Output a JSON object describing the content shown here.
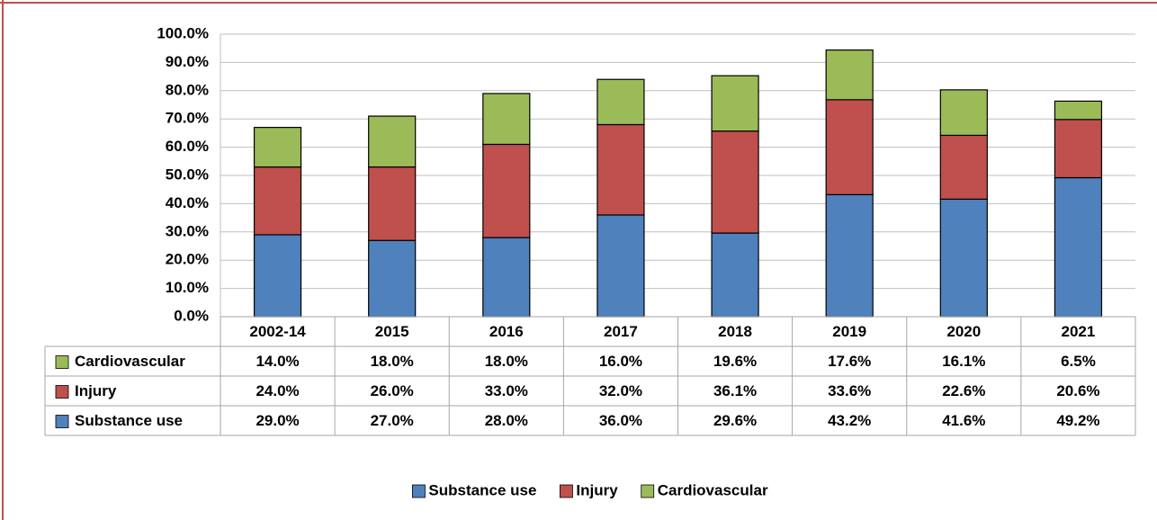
{
  "chart_data": {
    "type": "stacked_bar",
    "categories": [
      "2002-14",
      "2015",
      "2016",
      "2017",
      "2018",
      "2019",
      "2020",
      "2021"
    ],
    "series": [
      {
        "name": "Substance use",
        "color": "#4f81bd",
        "values": [
          29.0,
          27.0,
          28.0,
          36.0,
          29.6,
          43.2,
          41.6,
          49.2
        ],
        "value_labels": [
          "29.0%",
          "27.0%",
          "28.0%",
          "36.0%",
          "29.6%",
          "43.2%",
          "41.6%",
          "49.2%"
        ]
      },
      {
        "name": "Injury",
        "color": "#c0504d",
        "values": [
          24.0,
          26.0,
          33.0,
          32.0,
          36.1,
          33.6,
          22.6,
          20.6
        ],
        "value_labels": [
          "24.0%",
          "26.0%",
          "33.0%",
          "32.0%",
          "36.1%",
          "33.6%",
          "22.6%",
          "20.6%"
        ]
      },
      {
        "name": "Cardiovascular",
        "color": "#9bbb59",
        "values": [
          14.0,
          18.0,
          18.0,
          16.0,
          19.6,
          17.6,
          16.1,
          6.5
        ],
        "value_labels": [
          "14.0%",
          "18.0%",
          "18.0%",
          "16.0%",
          "19.6%",
          "17.6%",
          "16.1%",
          "6.5%"
        ]
      }
    ],
    "ylim": [
      0,
      100
    ],
    "yticks": [
      {
        "value": 0,
        "label": "0.0%"
      },
      {
        "value": 10,
        "label": "10.0%"
      },
      {
        "value": 20,
        "label": "20.0%"
      },
      {
        "value": 30,
        "label": "30.0%"
      },
      {
        "value": 40,
        "label": "40.0%"
      },
      {
        "value": 50,
        "label": "50.0%"
      },
      {
        "value": 60,
        "label": "60.0%"
      },
      {
        "value": 70,
        "label": "70.0%"
      },
      {
        "value": 80,
        "label": "80.0%"
      },
      {
        "value": 90,
        "label": "90.0%"
      },
      {
        "value": 100,
        "label": "100.0%"
      }
    ],
    "grid": true,
    "legend": "bottom"
  }
}
